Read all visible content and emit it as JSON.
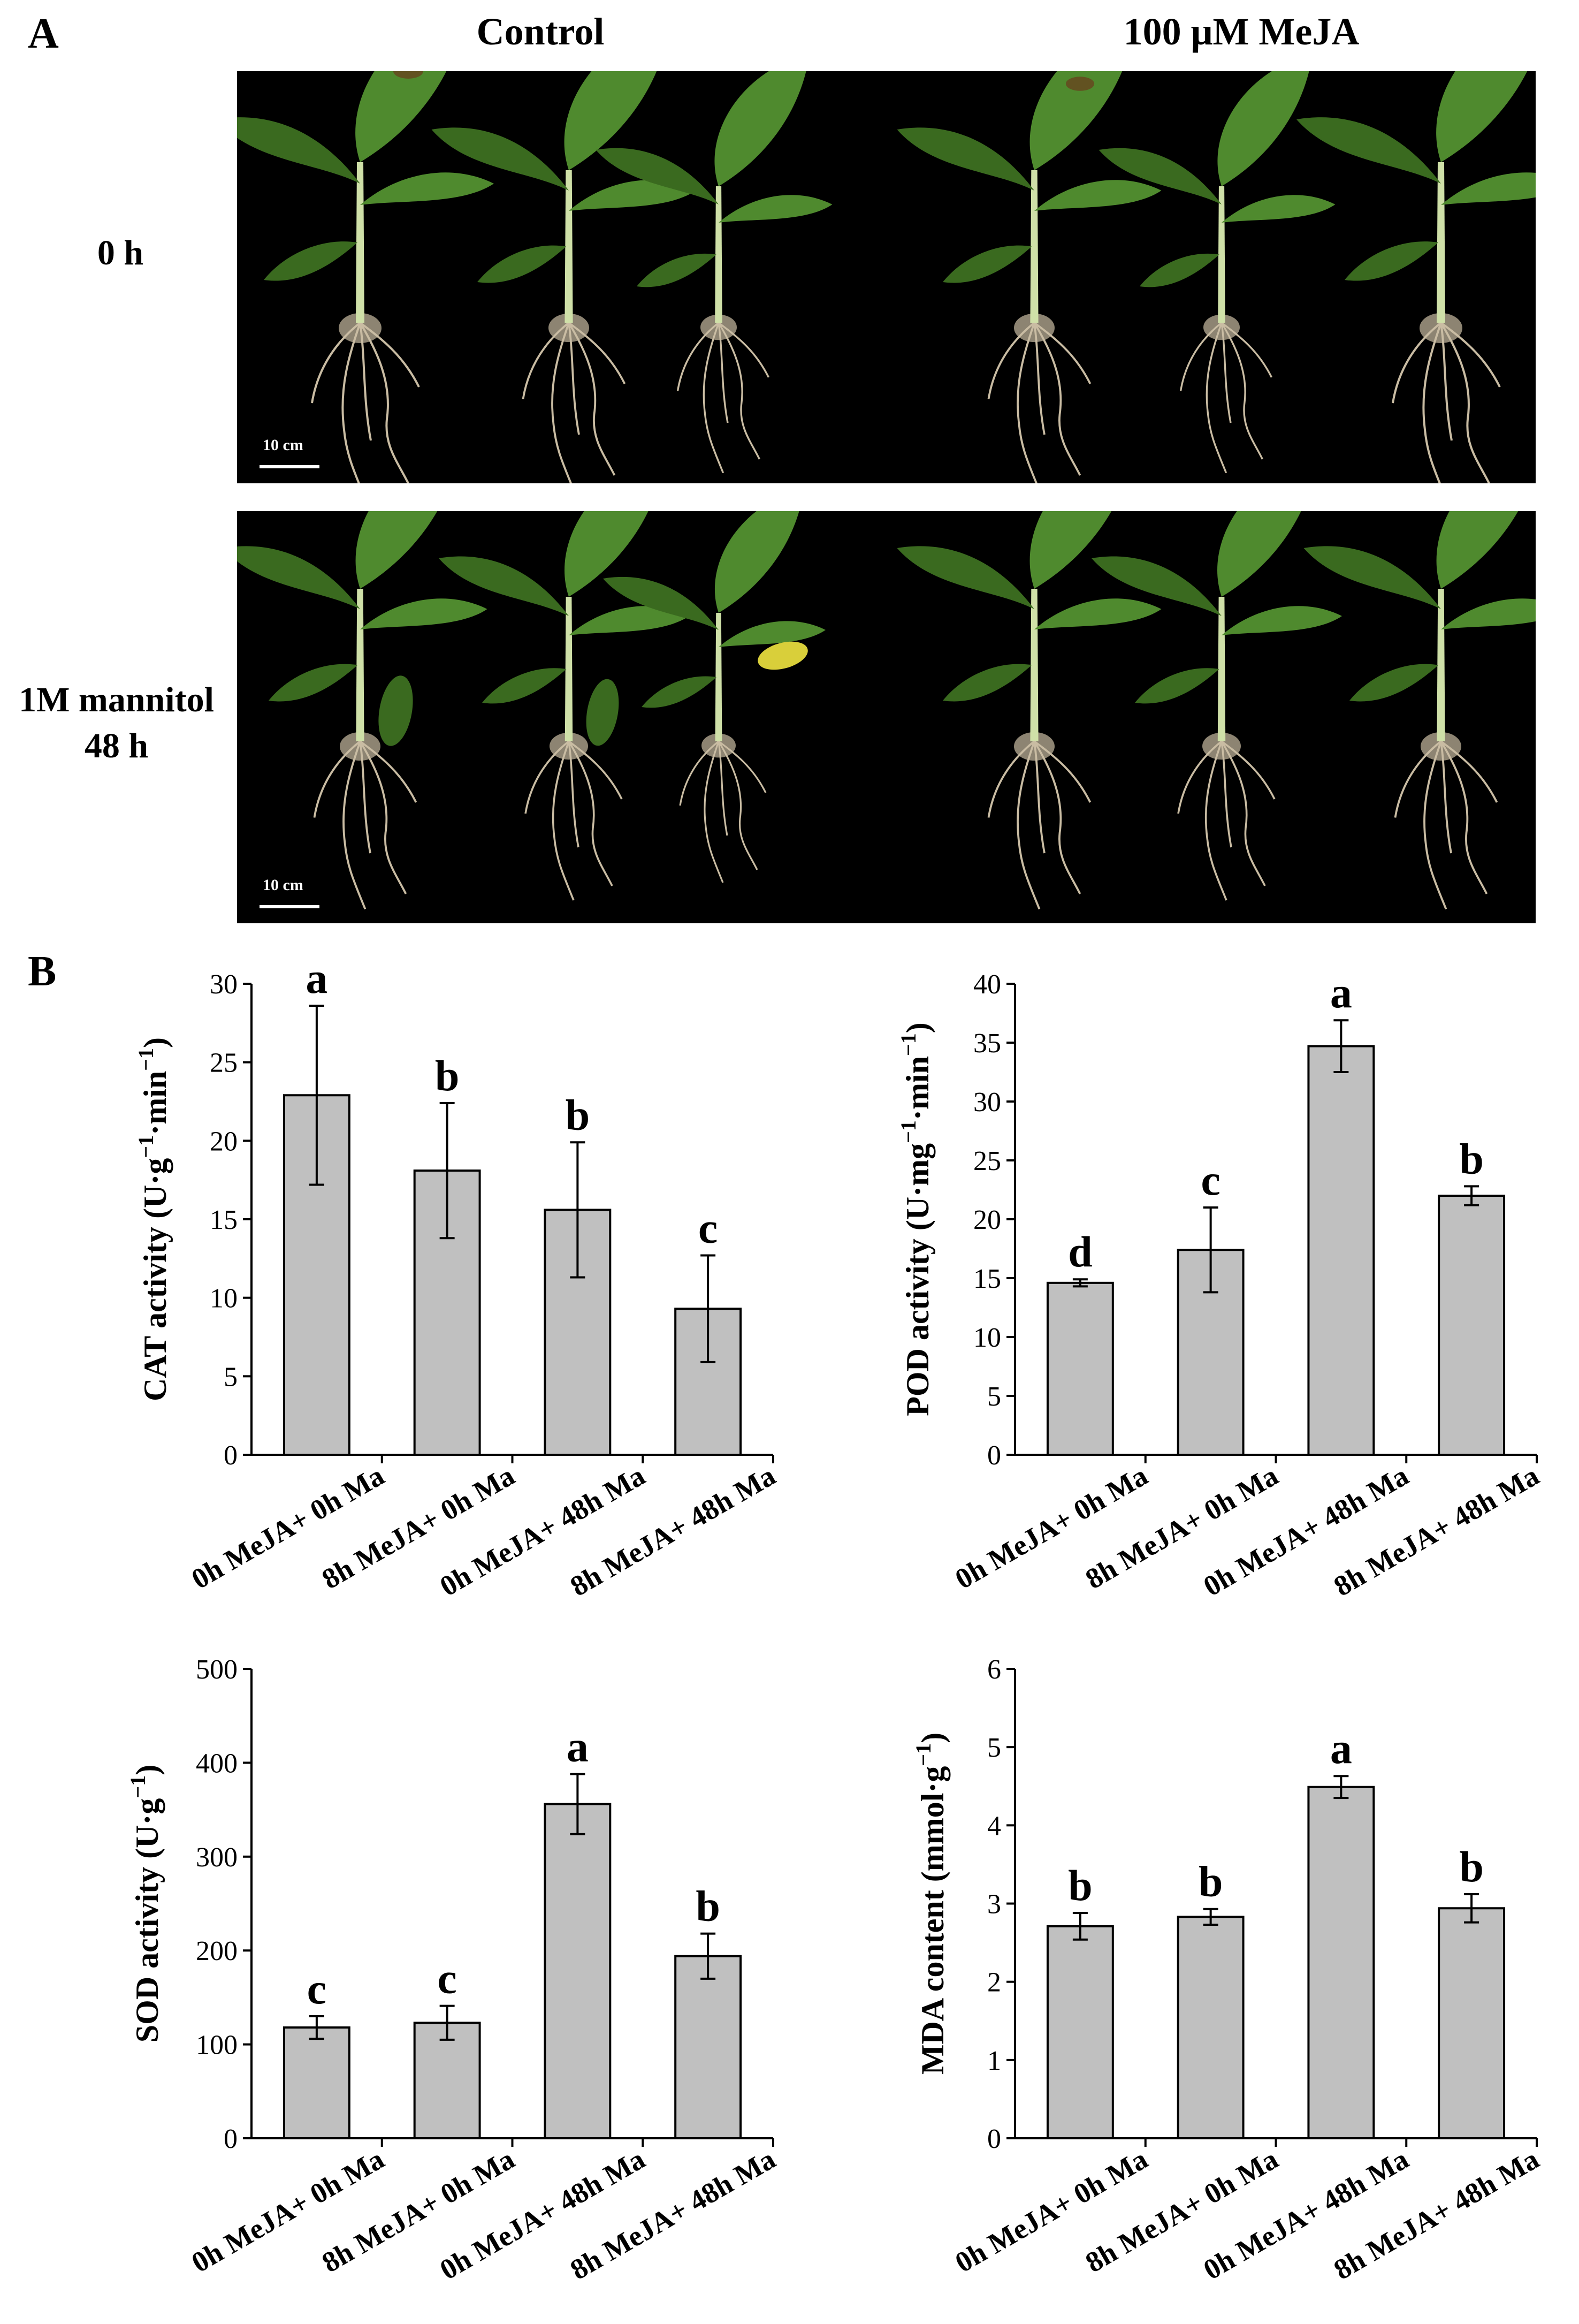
{
  "panelA": {
    "letter": "A",
    "col_titles": [
      "Control",
      "100 μM MeJA"
    ],
    "row_labels": [
      [
        "0 h"
      ],
      [
        "1M mannitol",
        "48 h"
      ]
    ],
    "scalebar_label": "10 cm",
    "colors": {
      "background": "#000000",
      "leaf": "#4f8a2e",
      "leaf_dark": "#3a6a1f",
      "leaf_spot": "#6b3a1c",
      "stem": "#cfe0a8",
      "root": "#c9bca3",
      "yellow_leaf": "#d9cf3a"
    }
  },
  "panelB": {
    "letter": "B"
  },
  "chart_data": [
    {
      "type": "bar",
      "id": "cat",
      "ylabel_main": "CAT activity (U·g",
      "ylabel_sup1": "−1",
      "ylabel_mid": "·min",
      "ylabel_sup2": "−1",
      "ylabel_end": ")",
      "categories": [
        "0h MeJA+ 0h Ma",
        "8h MeJA+ 0h Ma",
        "0h MeJA+ 48h Ma",
        "8h MeJA+ 48h Ma"
      ],
      "values": [
        22.9,
        18.1,
        15.6,
        9.3
      ],
      "errors": [
        5.7,
        4.3,
        4.3,
        3.4
      ],
      "letters": [
        "a",
        "b",
        "b",
        "c"
      ],
      "ylim": [
        0,
        30
      ],
      "yticks": [
        "0",
        "5",
        "10",
        "15",
        "20",
        "25",
        "30"
      ],
      "bar_color": "#c0c0c0"
    },
    {
      "type": "bar",
      "id": "pod",
      "ylabel_main": "POD activity (U·mg",
      "ylabel_sup1": "−1",
      "ylabel_mid": "·min",
      "ylabel_sup2": "−1",
      "ylabel_end": ")",
      "categories": [
        "0h MeJA+ 0h Ma",
        "8h MeJA+ 0h Ma",
        "0h MeJA+ 48h Ma",
        "8h MeJA+ 48h Ma"
      ],
      "values": [
        14.6,
        17.4,
        34.7,
        22.0
      ],
      "errors": [
        0.3,
        3.6,
        2.2,
        0.8
      ],
      "letters": [
        "d",
        "c",
        "a",
        "b"
      ],
      "ylim": [
        0,
        40
      ],
      "yticks": [
        "0",
        "5",
        "10",
        "15",
        "20",
        "25",
        "30",
        "35",
        "40"
      ],
      "bar_color": "#c0c0c0"
    },
    {
      "type": "bar",
      "id": "sod",
      "ylabel_main": "SOD activity (U·g",
      "ylabel_sup1": "−1",
      "ylabel_mid": "",
      "ylabel_sup2": "",
      "ylabel_end": ")",
      "categories": [
        "0h MeJA+ 0h Ma",
        "8h MeJA+ 0h Ma",
        "0h MeJA+ 48h Ma",
        "8h MeJA+ 48h Ma"
      ],
      "values": [
        118,
        123,
        356,
        194
      ],
      "errors": [
        12,
        18,
        32,
        24
      ],
      "letters": [
        "c",
        "c",
        "a",
        "b"
      ],
      "ylim": [
        0,
        500
      ],
      "yticks": [
        "0",
        "100",
        "200",
        "300",
        "400",
        "500"
      ],
      "bar_color": "#c0c0c0"
    },
    {
      "type": "bar",
      "id": "mda",
      "ylabel_main": "MDA content (mmol·g",
      "ylabel_sup1": "−1",
      "ylabel_mid": "",
      "ylabel_sup2": "",
      "ylabel_end": ")",
      "categories": [
        "0h MeJA+ 0h Ma",
        "8h MeJA+ 0h Ma",
        "0h MeJA+ 48h Ma",
        "8h MeJA+ 48h Ma"
      ],
      "values": [
        2.71,
        2.83,
        4.49,
        2.94
      ],
      "errors": [
        0.17,
        0.1,
        0.14,
        0.18
      ],
      "letters": [
        "b",
        "b",
        "a",
        "b"
      ],
      "ylim": [
        0,
        6
      ],
      "yticks": [
        "0",
        "1",
        "2",
        "3",
        "4",
        "5",
        "6"
      ],
      "bar_color": "#c0c0c0"
    }
  ]
}
